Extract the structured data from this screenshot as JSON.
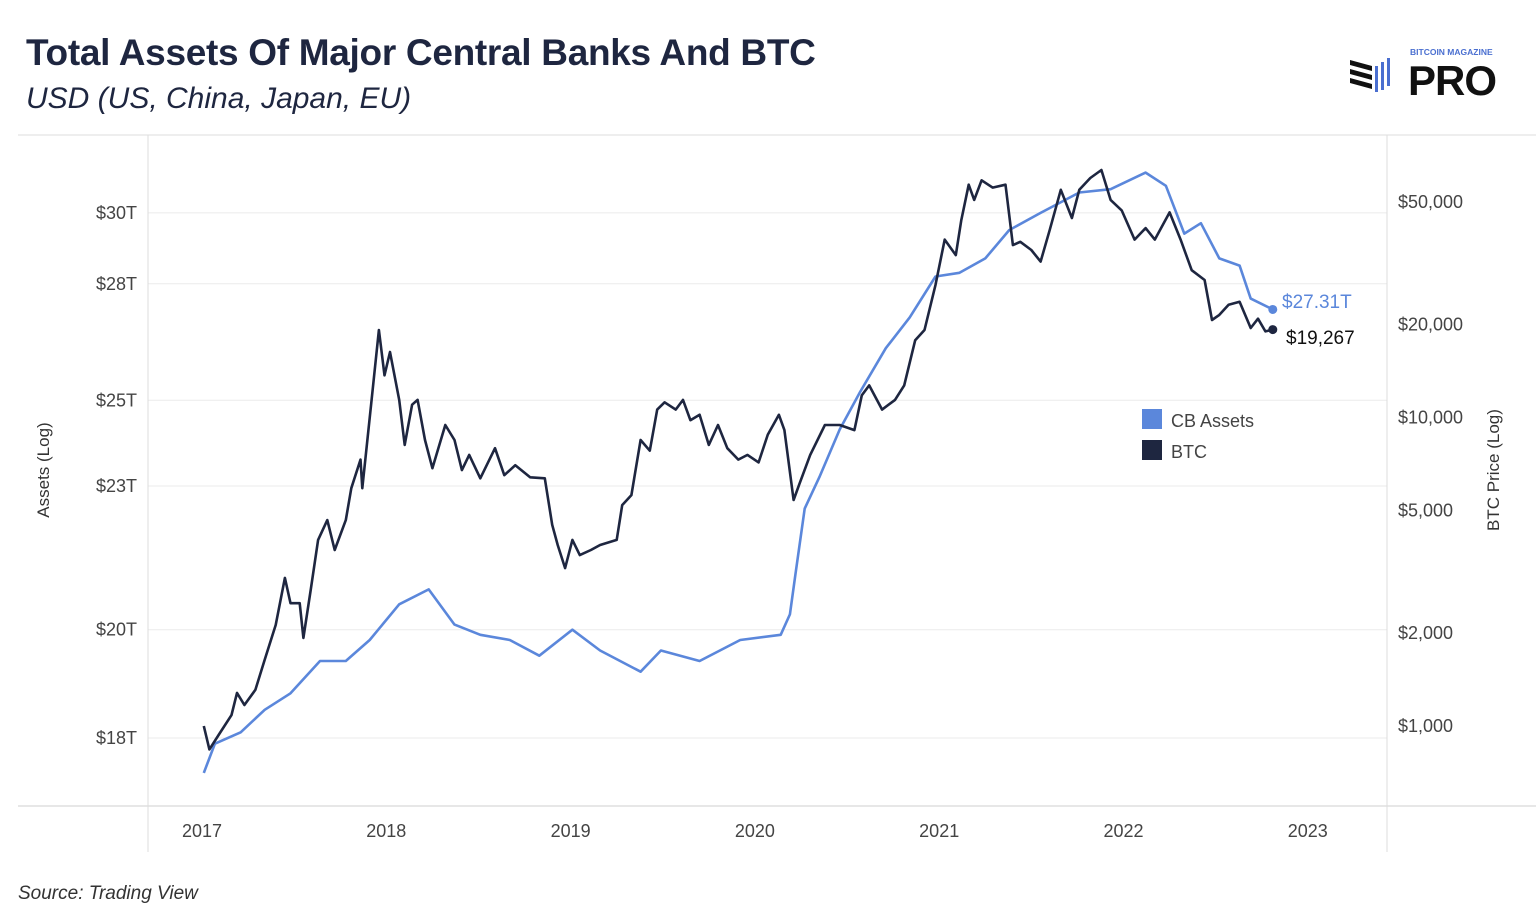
{
  "header": {
    "title": "Total Assets Of Major Central Banks And BTC",
    "subtitle": "USD (US, China, Japan, EU)"
  },
  "logo": {
    "top": "BITCOIN MAGAZINE",
    "main": "PRO"
  },
  "source": "Source: Trading View",
  "colors": {
    "cb_assets": "#5b87db",
    "btc": "#1e2640",
    "grid": "#ebebeb",
    "axis": "#cfcfcf"
  },
  "chart_data": {
    "type": "line",
    "title": "Total Assets Of Major Central Banks And BTC",
    "subtitle": "USD (US, China, Japan, EU)",
    "xlabel": "",
    "x_ticks": [
      "2017",
      "2018",
      "2019",
      "2020",
      "2021",
      "2022",
      "2023"
    ],
    "xlim": [
      2016.7,
      2023.3
    ],
    "y_left": {
      "label": "Assets (Log)",
      "scale": "log",
      "ticks": [
        18,
        20,
        23,
        25,
        28,
        30
      ],
      "tick_labels": [
        "$18T",
        "$20T",
        "$23T",
        "$25T",
        "$28T",
        "$30T"
      ],
      "unit": "trillion USD"
    },
    "y_right": {
      "label": "BTC Price (Log)",
      "scale": "log",
      "ticks": [
        1000,
        2000,
        5000,
        10000,
        20000,
        50000
      ],
      "tick_labels": [
        "$1,000",
        "$2,000",
        "$5,000",
        "$10,000",
        "$20,000",
        "$50,000"
      ],
      "unit": "USD"
    },
    "grid": true,
    "legend": {
      "placement": "right",
      "entries": [
        "CB Assets",
        "BTC"
      ]
    },
    "series": [
      {
        "name": "CB Assets",
        "axis": "left",
        "end_label": "$27.31T",
        "x": [
          2017.01,
          2017.07,
          2017.21,
          2017.34,
          2017.48,
          2017.64,
          2017.78,
          2017.91,
          2018.07,
          2018.23,
          2018.37,
          2018.51,
          2018.67,
          2018.83,
          2019.01,
          2019.16,
          2019.38,
          2019.49,
          2019.7,
          2019.92,
          2020.14,
          2020.19,
          2020.22,
          2020.27,
          2020.35,
          2020.46,
          2020.57,
          2020.71,
          2020.84,
          2020.98,
          2021.11,
          2021.25,
          2021.38,
          2021.55,
          2021.76,
          2021.93,
          2022.12,
          2022.23,
          2022.33,
          2022.42,
          2022.52,
          2022.63,
          2022.69,
          2022.81
        ],
        "values": [
          17.4,
          17.9,
          18.1,
          18.5,
          18.8,
          19.4,
          19.4,
          19.8,
          20.5,
          20.8,
          20.1,
          19.9,
          19.8,
          19.5,
          20.0,
          19.6,
          19.2,
          19.6,
          19.4,
          19.8,
          19.9,
          20.3,
          21.1,
          22.5,
          23.2,
          24.3,
          25.2,
          26.3,
          27.1,
          28.2,
          28.3,
          28.7,
          29.5,
          30.0,
          30.6,
          30.7,
          31.2,
          30.8,
          29.4,
          29.7,
          28.7,
          28.5,
          27.6,
          27.31
        ]
      },
      {
        "name": "BTC",
        "axis": "right",
        "end_label": "$19,267",
        "x": [
          2017.01,
          2017.04,
          2017.09,
          2017.16,
          2017.19,
          2017.23,
          2017.29,
          2017.34,
          2017.4,
          2017.45,
          2017.48,
          2017.53,
          2017.55,
          2017.59,
          2017.63,
          2017.68,
          2017.72,
          2017.78,
          2017.81,
          2017.86,
          2017.87,
          2017.92,
          2017.96,
          2017.99,
          2018.02,
          2018.07,
          2018.1,
          2018.14,
          2018.17,
          2018.21,
          2018.25,
          2018.32,
          2018.37,
          2018.41,
          2018.45,
          2018.51,
          2018.59,
          2018.64,
          2018.7,
          2018.78,
          2018.86,
          2018.9,
          2018.93,
          2018.97,
          2019.01,
          2019.05,
          2019.11,
          2019.16,
          2019.25,
          2019.28,
          2019.33,
          2019.38,
          2019.43,
          2019.47,
          2019.51,
          2019.57,
          2019.61,
          2019.65,
          2019.7,
          2019.75,
          2019.8,
          2019.85,
          2019.91,
          2019.96,
          2020.02,
          2020.07,
          2020.13,
          2020.16,
          2020.21,
          2020.24,
          2020.3,
          2020.38,
          2020.46,
          2020.54,
          2020.58,
          2020.62,
          2020.69,
          2020.76,
          2020.81,
          2020.87,
          2020.92,
          2020.98,
          2021.03,
          2021.09,
          2021.12,
          2021.16,
          2021.19,
          2021.23,
          2021.29,
          2021.36,
          2021.4,
          2021.44,
          2021.5,
          2021.55,
          2021.6,
          2021.66,
          2021.72,
          2021.76,
          2021.82,
          2021.88,
          2021.93,
          2021.99,
          2022.06,
          2022.12,
          2022.17,
          2022.25,
          2022.31,
          2022.37,
          2022.44,
          2022.48,
          2022.52,
          2022.57,
          2022.63,
          2022.69,
          2022.73,
          2022.77,
          2022.81
        ],
        "values": [
          1000,
          840,
          935,
          1085,
          1280,
          1170,
          1310,
          1640,
          2125,
          3020,
          2500,
          2500,
          1930,
          2760,
          4010,
          4650,
          3720,
          4650,
          5900,
          7300,
          5900,
          11400,
          19200,
          13700,
          16300,
          11400,
          8150,
          11000,
          11400,
          8450,
          6850,
          9450,
          8450,
          6750,
          7560,
          6350,
          7950,
          6500,
          7000,
          6400,
          6350,
          4490,
          3860,
          3250,
          4010,
          3580,
          3720,
          3860,
          4010,
          5200,
          5600,
          8450,
          7800,
          10600,
          11200,
          10600,
          11400,
          9800,
          10200,
          8150,
          9450,
          7950,
          7300,
          7560,
          7150,
          8800,
          10200,
          9100,
          5400,
          6050,
          7560,
          9450,
          9450,
          9100,
          11800,
          12700,
          10600,
          11400,
          12700,
          17800,
          19200,
          26900,
          37700,
          33600,
          43600,
          56800,
          50700,
          58700,
          55600,
          56800,
          36200,
          37100,
          34900,
          32000,
          40600,
          54700,
          44300,
          54700,
          59700,
          63400,
          50700,
          46900,
          37700,
          41100,
          37700,
          46200,
          37700,
          30000,
          27900,
          20700,
          21500,
          23200,
          23700,
          19500,
          20900,
          19000,
          19267
        ]
      }
    ]
  }
}
